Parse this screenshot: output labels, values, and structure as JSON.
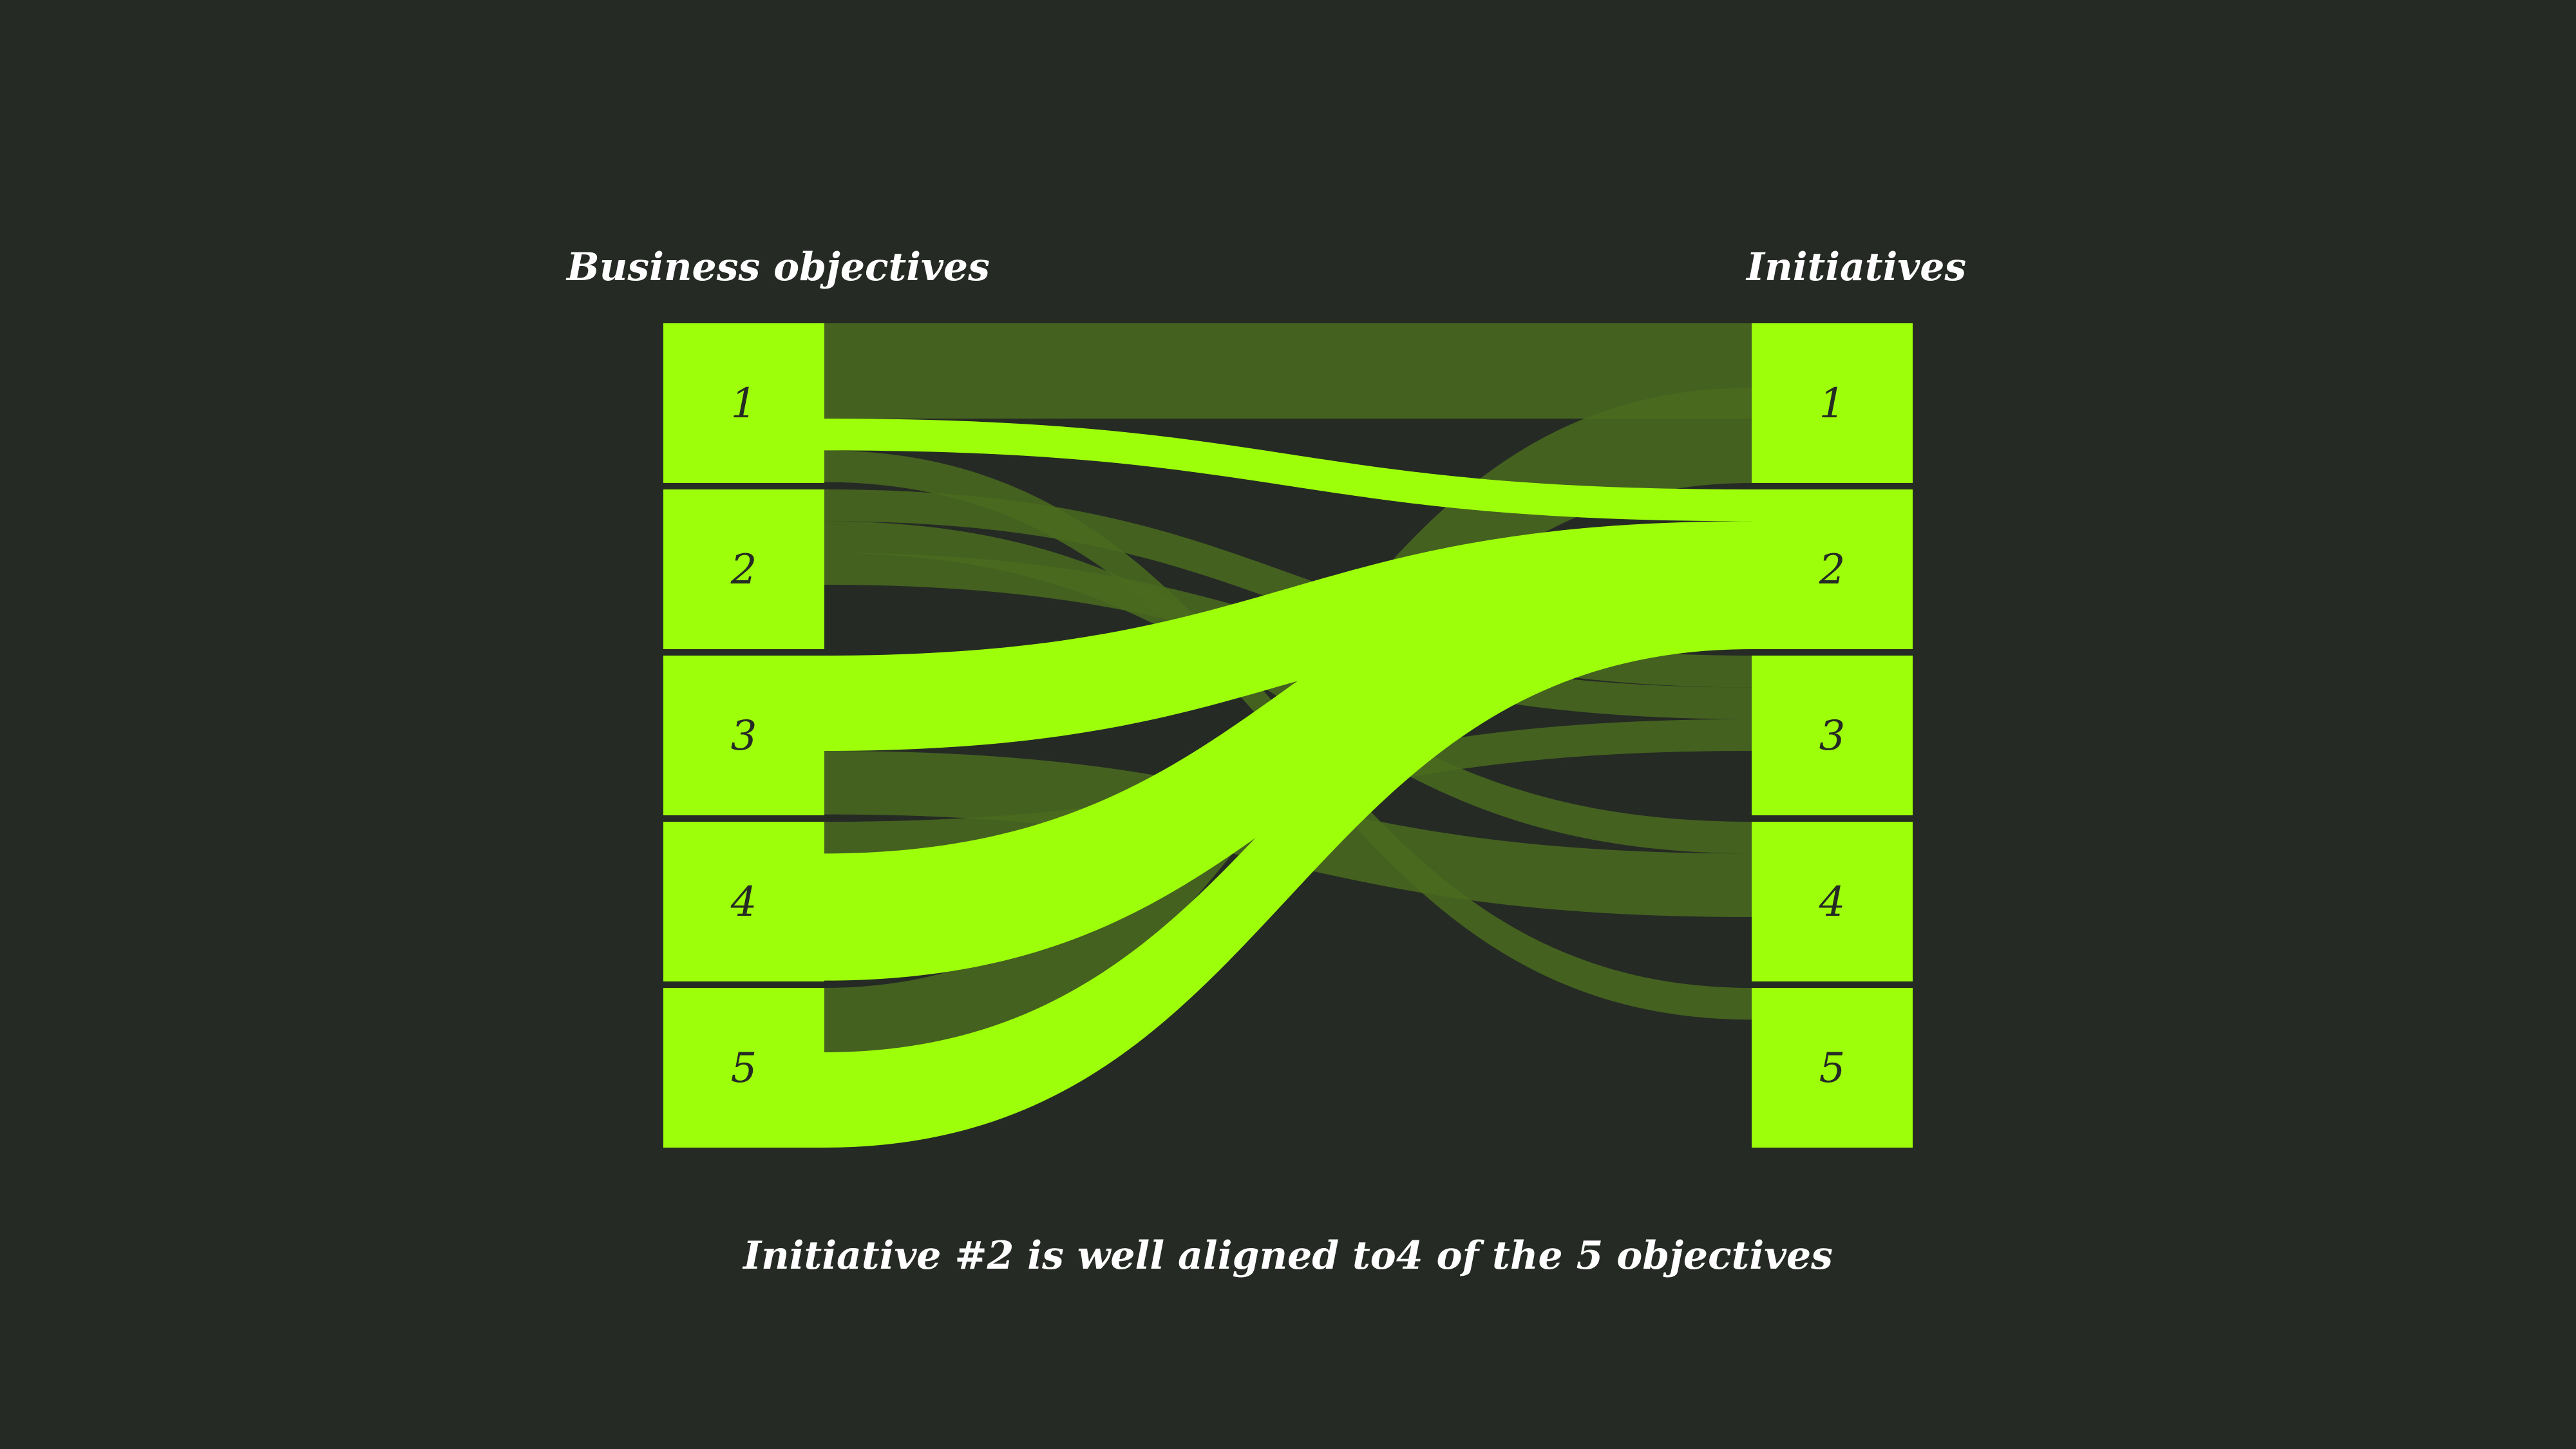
{
  "headings": {
    "left": "Business objectives",
    "right": "Initiatives"
  },
  "caption": "Initiative #2 is well aligned to4 of the 5 objectives",
  "colors": {
    "background": "#252a25",
    "node": "#9dff0a",
    "highlight_flow": "#9dff0a",
    "muted_flow": "#4a6b1f",
    "label": "#252a25",
    "heading_text": "#ffffff"
  },
  "objectives": [
    {
      "id": "obj-1",
      "label": "1"
    },
    {
      "id": "obj-2",
      "label": "2"
    },
    {
      "id": "obj-3",
      "label": "3"
    },
    {
      "id": "obj-4",
      "label": "4"
    },
    {
      "id": "obj-5",
      "label": "5"
    }
  ],
  "initiatives": [
    {
      "id": "init-1",
      "label": "1"
    },
    {
      "id": "init-2",
      "label": "2"
    },
    {
      "id": "init-3",
      "label": "3"
    },
    {
      "id": "init-4",
      "label": "4"
    },
    {
      "id": "init-5",
      "label": "5"
    }
  ],
  "flows": [
    {
      "from": "1",
      "to": "1",
      "weight": 3,
      "highlight": false
    },
    {
      "from": "1",
      "to": "2",
      "weight": 1,
      "highlight": true
    },
    {
      "from": "1",
      "to": "5",
      "weight": 1,
      "highlight": false
    },
    {
      "from": "2",
      "to": "3",
      "weight": 1,
      "highlight": false
    },
    {
      "from": "2",
      "to": "4",
      "weight": 1,
      "highlight": false
    },
    {
      "from": "2",
      "to": "3",
      "weight": 1,
      "highlight": false
    },
    {
      "from": "3",
      "to": "2",
      "weight": 3,
      "highlight": true
    },
    {
      "from": "3",
      "to": "4",
      "weight": 2,
      "highlight": false
    },
    {
      "from": "4",
      "to": "3",
      "weight": 1,
      "highlight": false
    },
    {
      "from": "4",
      "to": "2",
      "weight": 4,
      "highlight": true
    },
    {
      "from": "5",
      "to": "1",
      "weight": 3,
      "highlight": false
    },
    {
      "from": "5",
      "to": "2",
      "weight": 3,
      "highlight": true
    }
  ]
}
